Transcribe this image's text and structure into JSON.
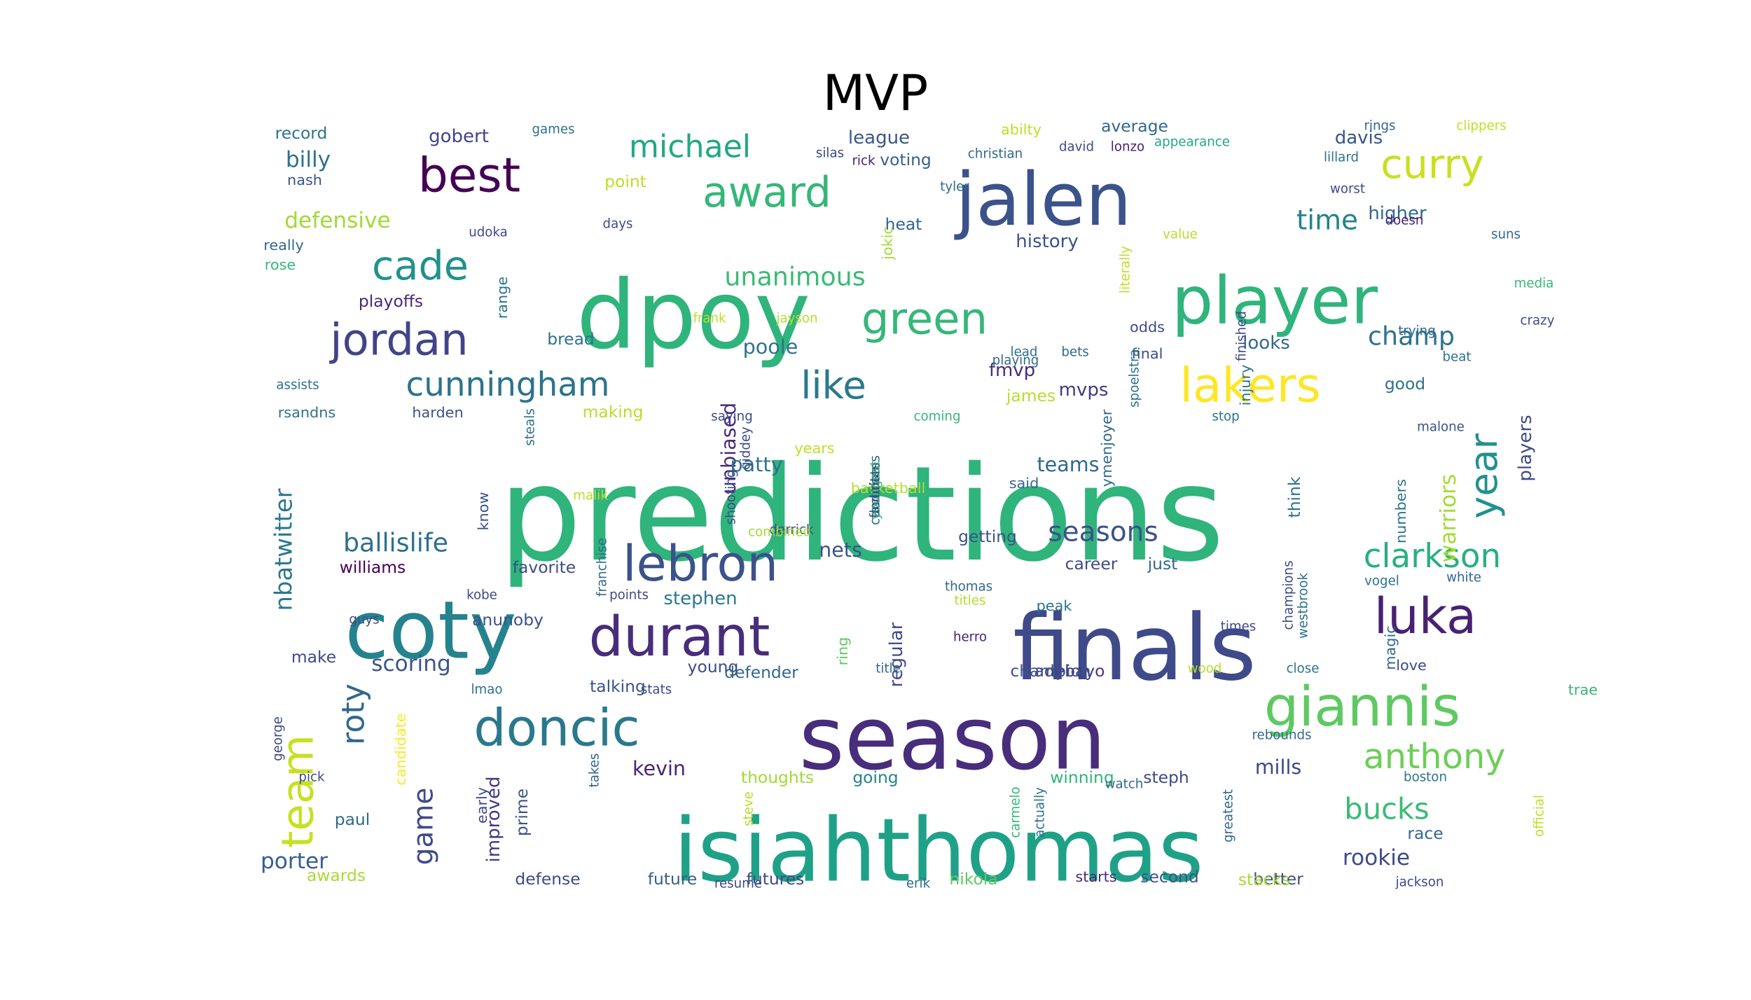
{
  "title": "MVP",
  "words": [
    {
      "text": "predictions",
      "size": 0.72,
      "color": "#2fb47c",
      "rot": 0
    },
    {
      "text": "dpoy",
      "size": 0.52,
      "color": "#2fb47c",
      "rot": 0
    },
    {
      "text": "finals",
      "size": 0.5,
      "color": "#3e4a89",
      "rot": 0
    },
    {
      "text": "season",
      "size": 0.48,
      "color": "#472d7b",
      "rot": 0
    },
    {
      "text": "isiahthomas",
      "size": 0.48,
      "color": "#1fa187",
      "rot": 0
    },
    {
      "text": "coty",
      "size": 0.44,
      "color": "#25838e",
      "rot": 0
    },
    {
      "text": "jalen",
      "size": 0.4,
      "color": "#3b528b",
      "rot": 0
    },
    {
      "text": "player",
      "size": 0.36,
      "color": "#2fb47c",
      "rot": 0
    },
    {
      "text": "durant",
      "size": 0.3,
      "color": "#472d7b",
      "rot": 0
    },
    {
      "text": "giannis",
      "size": 0.3,
      "color": "#5ec962",
      "rot": 0
    },
    {
      "text": "lakers",
      "size": 0.26,
      "color": "#fde725",
      "rot": 0
    },
    {
      "text": "doncic",
      "size": 0.28,
      "color": "#2a788e",
      "rot": 0
    },
    {
      "text": "lebron",
      "size": 0.27,
      "color": "#3b528b",
      "rot": 0
    },
    {
      "text": "luka",
      "size": 0.27,
      "color": "#482173",
      "rot": 0
    },
    {
      "text": "best",
      "size": 0.26,
      "color": "#440154",
      "rot": 0
    },
    {
      "text": "jordan",
      "size": 0.24,
      "color": "#414487",
      "rot": 0
    },
    {
      "text": "green",
      "size": 0.24,
      "color": "#35b779",
      "rot": 0
    },
    {
      "text": "team",
      "size": 0.24,
      "color": "#c8e020",
      "rot": -90
    },
    {
      "text": "award",
      "size": 0.23,
      "color": "#35b779",
      "rot": 0
    },
    {
      "text": "cade",
      "size": 0.22,
      "color": "#21918c",
      "rot": 0
    },
    {
      "text": "curry",
      "size": 0.22,
      "color": "#c8e020",
      "rot": 0
    },
    {
      "text": "like",
      "size": 0.21,
      "color": "#2a788e",
      "rot": 0
    },
    {
      "text": "year",
      "size": 0.21,
      "color": "#21918c",
      "rot": -90
    },
    {
      "text": "anthony",
      "size": 0.19,
      "color": "#6ece58",
      "rot": 0
    },
    {
      "text": "clarkson",
      "size": 0.18,
      "color": "#29af7f",
      "rot": 0
    },
    {
      "text": "cunningham",
      "size": 0.18,
      "color": "#2c728e",
      "rot": 0
    },
    {
      "text": "michael",
      "size": 0.17,
      "color": "#22a884",
      "rot": 0
    },
    {
      "text": "roty",
      "size": 0.17,
      "color": "#31688e",
      "rot": -90
    },
    {
      "text": "bucks",
      "size": 0.16,
      "color": "#3bbb75",
      "rot": 0
    },
    {
      "text": "seasons",
      "size": 0.15,
      "color": "#3b528b",
      "rot": 0
    },
    {
      "text": "game",
      "size": 0.15,
      "color": "#3e4a89",
      "rot": -90
    },
    {
      "text": "time",
      "size": 0.15,
      "color": "#26828e",
      "rot": 0
    },
    {
      "text": "unanimous",
      "size": 0.14,
      "color": "#3bbb75",
      "rot": 0
    },
    {
      "text": "ballislife",
      "size": 0.14,
      "color": "#2d708e",
      "rot": 0
    },
    {
      "text": "champ",
      "size": 0.14,
      "color": "#2c728e",
      "rot": 0
    },
    {
      "text": "nbatwitter",
      "size": 0.13,
      "color": "#2a788e",
      "rot": -90
    },
    {
      "text": "rookie",
      "size": 0.12,
      "color": "#3e4a89",
      "rot": 0
    },
    {
      "text": "warriors",
      "size": 0.12,
      "color": "#a5db36",
      "rot": -90
    },
    {
      "text": "scoring",
      "size": 0.12,
      "color": "#39558c",
      "rot": 0
    },
    {
      "text": "porter",
      "size": 0.12,
      "color": "#355f8d",
      "rot": 0
    },
    {
      "text": "billy",
      "size": 0.12,
      "color": "#2c728e",
      "rot": 0
    },
    {
      "text": "defensive",
      "size": 0.12,
      "color": "#a2da37",
      "rot": 0
    },
    {
      "text": "mills",
      "size": 0.11,
      "color": "#3e4a89",
      "rot": 0
    },
    {
      "text": "unbiased",
      "size": 0.11,
      "color": "#472c7a",
      "rot": -90
    },
    {
      "text": "patty",
      "size": 0.11,
      "color": "#2c728e",
      "rot": 0
    },
    {
      "text": "teams",
      "size": 0.11,
      "color": "#31688e",
      "rot": 0
    },
    {
      "text": "nets",
      "size": 0.11,
      "color": "#3b528b",
      "rot": 0
    },
    {
      "text": "poole",
      "size": 0.11,
      "color": "#2c728e",
      "rot": 0
    },
    {
      "text": "kevin",
      "size": 0.11,
      "color": "#482576",
      "rot": 0
    },
    {
      "text": "players",
      "size": 0.1,
      "color": "#3e4a89",
      "rot": -90
    },
    {
      "text": "gobert",
      "size": 0.1,
      "color": "#414487",
      "rot": 0
    },
    {
      "text": "league",
      "size": 0.1,
      "color": "#39568c",
      "rot": 0
    },
    {
      "text": "davis",
      "size": 0.1,
      "color": "#39558c",
      "rot": 0
    },
    {
      "text": "higher",
      "size": 0.1,
      "color": "#31688e",
      "rot": 0
    },
    {
      "text": "history",
      "size": 0.1,
      "color": "#3b528b",
      "rot": 0
    },
    {
      "text": "fmvp",
      "size": 0.1,
      "color": "#472d7b",
      "rot": 0
    },
    {
      "text": "mvps",
      "size": 0.1,
      "color": "#443983",
      "rot": 0
    },
    {
      "text": "looks",
      "size": 0.1,
      "color": "#31688e",
      "rot": 0
    },
    {
      "text": "stephen",
      "size": 0.1,
      "color": "#2a788e",
      "rot": 0
    },
    {
      "text": "regular",
      "size": 0.1,
      "color": "#3e4a89",
      "rot": -90
    },
    {
      "text": "improved",
      "size": 0.1,
      "color": "#443983",
      "rot": -90
    },
    {
      "text": "steph",
      "size": 0.09,
      "color": "#3e4a89",
      "rot": 0
    },
    {
      "text": "young",
      "size": 0.09,
      "color": "#3e4a89",
      "rot": 0
    },
    {
      "text": "adebayo",
      "size": 0.09,
      "color": "#443983",
      "rot": 0
    },
    {
      "text": "record",
      "size": 0.09,
      "color": "#2c728e",
      "rot": 0
    },
    {
      "text": "average",
      "size": 0.09,
      "color": "#31688e",
      "rot": 0
    },
    {
      "text": "good",
      "size": 0.09,
      "color": "#2c728e",
      "rot": 0
    },
    {
      "text": "think",
      "size": 0.09,
      "color": "#2c728e",
      "rot": -90
    },
    {
      "text": "williams",
      "size": 0.09,
      "color": "#440154",
      "rot": 0
    },
    {
      "text": "favorite",
      "size": 0.09,
      "color": "#3e4a89",
      "rot": 0
    },
    {
      "text": "playoffs",
      "size": 0.09,
      "color": "#482878",
      "rot": 0
    },
    {
      "text": "defender",
      "size": 0.09,
      "color": "#31688e",
      "rot": 0
    },
    {
      "text": "talking",
      "size": 0.09,
      "color": "#3b528b",
      "rot": 0
    },
    {
      "text": "champion",
      "size": 0.09,
      "color": "#3b528b",
      "rot": 0
    },
    {
      "text": "voting",
      "size": 0.09,
      "color": "#35608d",
      "rot": 0
    },
    {
      "text": "heat",
      "size": 0.09,
      "color": "#33638d",
      "rot": 0
    },
    {
      "text": "james",
      "size": 0.09,
      "color": "#b5de2b",
      "rot": 0
    },
    {
      "text": "career",
      "size": 0.09,
      "color": "#3e4a89",
      "rot": 0
    },
    {
      "text": "getting",
      "size": 0.09,
      "color": "#3b528b",
      "rot": 0
    },
    {
      "text": "anunoby",
      "size": 0.09,
      "color": "#3b528b",
      "rot": 0
    },
    {
      "text": "point",
      "size": 0.09,
      "color": "#bddf26",
      "rot": 0
    },
    {
      "text": "just",
      "size": 0.09,
      "color": "#31688e",
      "rot": 0
    },
    {
      "text": "paul",
      "size": 0.09,
      "color": "#31688e",
      "rot": 0
    },
    {
      "text": "prime",
      "size": 0.09,
      "color": "#3b528b",
      "rot": -90
    },
    {
      "text": "winning",
      "size": 0.09,
      "color": "#2fb47c",
      "rot": 0
    },
    {
      "text": "thoughts",
      "size": 0.09,
      "color": "#a2da37",
      "rot": 0
    },
    {
      "text": "going",
      "size": 0.09,
      "color": "#26828e",
      "rot": 0
    },
    {
      "text": "future",
      "size": 0.09,
      "color": "#355f8d",
      "rot": 0
    },
    {
      "text": "futures",
      "size": 0.09,
      "color": "#3e4a89",
      "rot": 0
    },
    {
      "text": "second",
      "size": 0.09,
      "color": "#3b528b",
      "rot": 0
    },
    {
      "text": "better",
      "size": 0.09,
      "color": "#3e4a89",
      "rot": 0
    },
    {
      "text": "stacks",
      "size": 0.09,
      "color": "#a5db36",
      "rot": 0
    },
    {
      "text": "race",
      "size": 0.09,
      "color": "#31688e",
      "rot": 0
    },
    {
      "text": "starts",
      "size": 0.08,
      "color": "#482878",
      "rot": 0
    },
    {
      "text": "nikola",
      "size": 0.09,
      "color": "#5ec962",
      "rot": 0
    },
    {
      "text": "defense",
      "size": 0.09,
      "color": "#3e4a89",
      "rot": 0
    },
    {
      "text": "awards",
      "size": 0.09,
      "color": "#a8db34",
      "rot": 0
    },
    {
      "text": "make",
      "size": 0.09,
      "color": "#3e4a89",
      "rot": 0
    },
    {
      "text": "bread",
      "size": 0.09,
      "color": "#2c728e",
      "rot": 0
    },
    {
      "text": "making",
      "size": 0.09,
      "color": "#b8de29",
      "rot": 0
    },
    {
      "text": "harden",
      "size": 0.08,
      "color": "#3b528b",
      "rot": 0
    },
    {
      "text": "rsandns",
      "size": 0.08,
      "color": "#2c728e",
      "rot": 0
    },
    {
      "text": "basketball",
      "size": 0.08,
      "color": "#b5de2b",
      "rot": 0
    },
    {
      "text": "said",
      "size": 0.08,
      "color": "#31688e",
      "rot": 0
    },
    {
      "text": "final",
      "size": 0.08,
      "color": "#3e4a89",
      "rot": 0
    },
    {
      "text": "odds",
      "size": 0.08,
      "color": "#3e4a89",
      "rot": 0
    },
    {
      "text": "years",
      "size": 0.08,
      "color": "#bddf26",
      "rot": 0
    },
    {
      "text": "injury",
      "size": 0.08,
      "color": "#2c728e",
      "rot": -90
    },
    {
      "text": "jokic",
      "size": 0.08,
      "color": "#a5db36",
      "rot": -90
    },
    {
      "text": "nash",
      "size": 0.08,
      "color": "#3b528b",
      "rot": 0
    },
    {
      "text": "really",
      "size": 0.08,
      "color": "#31688e",
      "rot": 0
    },
    {
      "text": "rose",
      "size": 0.08,
      "color": "#35b779",
      "rot": 0
    },
    {
      "text": "peak",
      "size": 0.08,
      "color": "#2c728e",
      "rot": 0
    },
    {
      "text": "ring",
      "size": 0.08,
      "color": "#5ec962",
      "rot": -90
    },
    {
      "text": "know",
      "size": 0.08,
      "color": "#3b528b",
      "rot": -90
    },
    {
      "text": "early",
      "size": 0.08,
      "color": "#3e4a89",
      "rot": -90
    },
    {
      "text": "magic",
      "size": 0.08,
      "color": "#31688e",
      "rot": -90
    },
    {
      "text": "love",
      "size": 0.08,
      "color": "#3e4a89",
      "rot": 0
    },
    {
      "text": "trae",
      "size": 0.08,
      "color": "#35b779",
      "rot": 0
    },
    {
      "text": "numbers",
      "size": 0.08,
      "color": "#2c728e",
      "rot": -90
    },
    {
      "text": "ymenjoyer",
      "size": 0.08,
      "color": "#31688e",
      "rot": -90
    },
    {
      "text": "candidate",
      "size": 0.08,
      "color": "#fde725",
      "rot": -90
    },
    {
      "text": "range",
      "size": 0.08,
      "color": "#2c728e",
      "rot": -90
    },
    {
      "text": "abilty",
      "size": 0.08,
      "color": "#bddf26",
      "rot": 0
    },
    {
      "text": "games",
      "size": 0.07,
      "color": "#2c728e",
      "rot": 0
    },
    {
      "text": "rings",
      "size": 0.07,
      "color": "#31688e",
      "rot": 0
    },
    {
      "text": "clippers",
      "size": 0.07,
      "color": "#bddf26",
      "rot": 0
    },
    {
      "text": "appearance",
      "size": 0.07,
      "color": "#22a884",
      "rot": 0
    },
    {
      "text": "lillard",
      "size": 0.07,
      "color": "#2c728e",
      "rot": 0
    },
    {
      "text": "worst",
      "size": 0.07,
      "color": "#3e4a89",
      "rot": 0
    },
    {
      "text": "doesn",
      "size": 0.07,
      "color": "#482173",
      "rot": 0
    },
    {
      "text": "suns",
      "size": 0.07,
      "color": "#31688e",
      "rot": 0
    },
    {
      "text": "media",
      "size": 0.07,
      "color": "#35b779",
      "rot": 0
    },
    {
      "text": "crazy",
      "size": 0.07,
      "color": "#3e4a89",
      "rot": 0
    },
    {
      "text": "trying",
      "size": 0.07,
      "color": "#31688e",
      "rot": 0
    },
    {
      "text": "beat",
      "size": 0.07,
      "color": "#2c728e",
      "rot": 0
    },
    {
      "text": "malone",
      "size": 0.07,
      "color": "#3b528b",
      "rot": 0
    },
    {
      "text": "value",
      "size": 0.07,
      "color": "#b5de2b",
      "rot": 0
    },
    {
      "text": "silas",
      "size": 0.07,
      "color": "#3e4a89",
      "rot": 0
    },
    {
      "text": "tyler",
      "size": 0.07,
      "color": "#31688e",
      "rot": 0
    },
    {
      "text": "days",
      "size": 0.07,
      "color": "#3e4a89",
      "rot": 0
    },
    {
      "text": "udoka",
      "size": 0.07,
      "color": "#3e4a89",
      "rot": 0
    },
    {
      "text": "frank",
      "size": 0.07,
      "color": "#bddf26",
      "rot": 0
    },
    {
      "text": "jayson",
      "size": 0.07,
      "color": "#b5de2b",
      "rot": 0
    },
    {
      "text": "lead",
      "size": 0.07,
      "color": "#2c728e",
      "rot": 0
    },
    {
      "text": "bets",
      "size": 0.07,
      "color": "#31688e",
      "rot": 0
    },
    {
      "text": "assists",
      "size": 0.07,
      "color": "#2c728e",
      "rot": 0
    },
    {
      "text": "saying",
      "size": 0.07,
      "color": "#3e4a89",
      "rot": 0
    },
    {
      "text": "coming",
      "size": 0.07,
      "color": "#35b779",
      "rot": 0
    },
    {
      "text": "playing",
      "size": 0.07,
      "color": "#31688e",
      "rot": 0
    },
    {
      "text": "stop",
      "size": 0.07,
      "color": "#2c728e",
      "rot": 0
    },
    {
      "text": "malik",
      "size": 0.07,
      "color": "#bddf26",
      "rot": 0
    },
    {
      "text": "derrick",
      "size": 0.07,
      "color": "#3e4a89",
      "rot": 0
    },
    {
      "text": "combined",
      "size": 0.07,
      "color": "#a2da37",
      "rot": 0
    },
    {
      "text": "points",
      "size": 0.07,
      "color": "#3e4a89",
      "rot": 0
    },
    {
      "text": "kobe",
      "size": 0.07,
      "color": "#3e4a89",
      "rot": 0
    },
    {
      "text": "thomas",
      "size": 0.07,
      "color": "#31688e",
      "rot": 0
    },
    {
      "text": "titles",
      "size": 0.07,
      "color": "#b5de2b",
      "rot": 0
    },
    {
      "text": "herro",
      "size": 0.07,
      "color": "#482173",
      "rot": 0
    },
    {
      "text": "times",
      "size": 0.07,
      "color": "#3e4a89",
      "rot": 0
    },
    {
      "text": "vogel",
      "size": 0.07,
      "color": "#2c728e",
      "rot": 0
    },
    {
      "text": "white",
      "size": 0.07,
      "color": "#31688e",
      "rot": 0
    },
    {
      "text": "guys",
      "size": 0.07,
      "color": "#3e4a89",
      "rot": 0
    },
    {
      "text": "lmao",
      "size": 0.07,
      "color": "#2c728e",
      "rot": 0
    },
    {
      "text": "stats",
      "size": 0.07,
      "color": "#3e4a89",
      "rot": 0
    },
    {
      "text": "title",
      "size": 0.07,
      "color": "#31688e",
      "rot": 0
    },
    {
      "text": "wood",
      "size": 0.07,
      "color": "#b5de2b",
      "rot": 0
    },
    {
      "text": "close",
      "size": 0.07,
      "color": "#2c728e",
      "rot": 0
    },
    {
      "text": "rebounds",
      "size": 0.07,
      "color": "#31688e",
      "rot": 0
    },
    {
      "text": "pick",
      "size": 0.07,
      "color": "#3e4a89",
      "rot": 0
    },
    {
      "text": "watch",
      "size": 0.07,
      "color": "#31688e",
      "rot": 0
    },
    {
      "text": "boston",
      "size": 0.07,
      "color": "#2c728e",
      "rot": 0
    },
    {
      "text": "resume",
      "size": 0.07,
      "color": "#3e4a89",
      "rot": 0
    },
    {
      "text": "erik",
      "size": 0.07,
      "color": "#31688e",
      "rot": 0
    },
    {
      "text": "jackson",
      "size": 0.07,
      "color": "#3e4a89",
      "rot": 0
    },
    {
      "text": "christian",
      "size": 0.07,
      "color": "#31688e",
      "rot": 0
    },
    {
      "text": "david",
      "size": 0.07,
      "color": "#3e4a89",
      "rot": 0
    },
    {
      "text": "lonzo",
      "size": 0.07,
      "color": "#482173",
      "rot": 0
    },
    {
      "text": "rick",
      "size": 0.07,
      "color": "#482173",
      "rot": 0
    },
    {
      "text": "literally",
      "size": 0.07,
      "color": "#bddf26",
      "rot": -90
    },
    {
      "text": "spoelstra",
      "size": 0.07,
      "color": "#2c728e",
      "rot": -90
    },
    {
      "text": "finished",
      "size": 0.07,
      "color": "#3e4a89",
      "rot": -90
    },
    {
      "text": "giddey",
      "size": 0.07,
      "color": "#3e4a89",
      "rot": -90
    },
    {
      "text": "steals",
      "size": 0.07,
      "color": "#2c728e",
      "rot": -90
    },
    {
      "text": "shooting",
      "size": 0.07,
      "color": "#3e4a89",
      "rot": -90
    },
    {
      "text": "franchise",
      "size": 0.07,
      "color": "#31688e",
      "rot": -90
    },
    {
      "text": "champions",
      "size": 0.07,
      "color": "#3e4a89",
      "rot": -90
    },
    {
      "text": "westbrook",
      "size": 0.07,
      "color": "#2c728e",
      "rot": -90
    },
    {
      "text": "george",
      "size": 0.07,
      "color": "#3e4a89",
      "rot": -90
    },
    {
      "text": "takes",
      "size": 0.07,
      "color": "#31688e",
      "rot": -90
    },
    {
      "text": "steve",
      "size": 0.07,
      "color": "#b5de2b",
      "rot": -90
    },
    {
      "text": "actually",
      "size": 0.07,
      "color": "#2c728e",
      "rot": -90
    },
    {
      "text": "carmelo",
      "size": 0.07,
      "color": "#35b779",
      "rot": -90
    },
    {
      "text": "greatest",
      "size": 0.07,
      "color": "#31688e",
      "rot": -90
    },
    {
      "text": "official",
      "size": 0.07,
      "color": "#bddf26",
      "rot": -90
    },
    {
      "text": "chris",
      "size": 0.07,
      "color": "#3e4a89",
      "rot": -90
    },
    {
      "text": "candidates",
      "size": 0.07,
      "color": "#31688e",
      "rot": -90
    },
    {
      "text": "favorites",
      "size": 0.07,
      "color": "#3e4a89",
      "rot": -90
    },
    {
      "text": "donovan",
      "size": 0.07,
      "color": "#3e4a89",
      "rot": -90
    },
    {
      "text": "youngest",
      "size": 0.07,
      "color": "#35b779",
      "rot": -90
    }
  ]
}
